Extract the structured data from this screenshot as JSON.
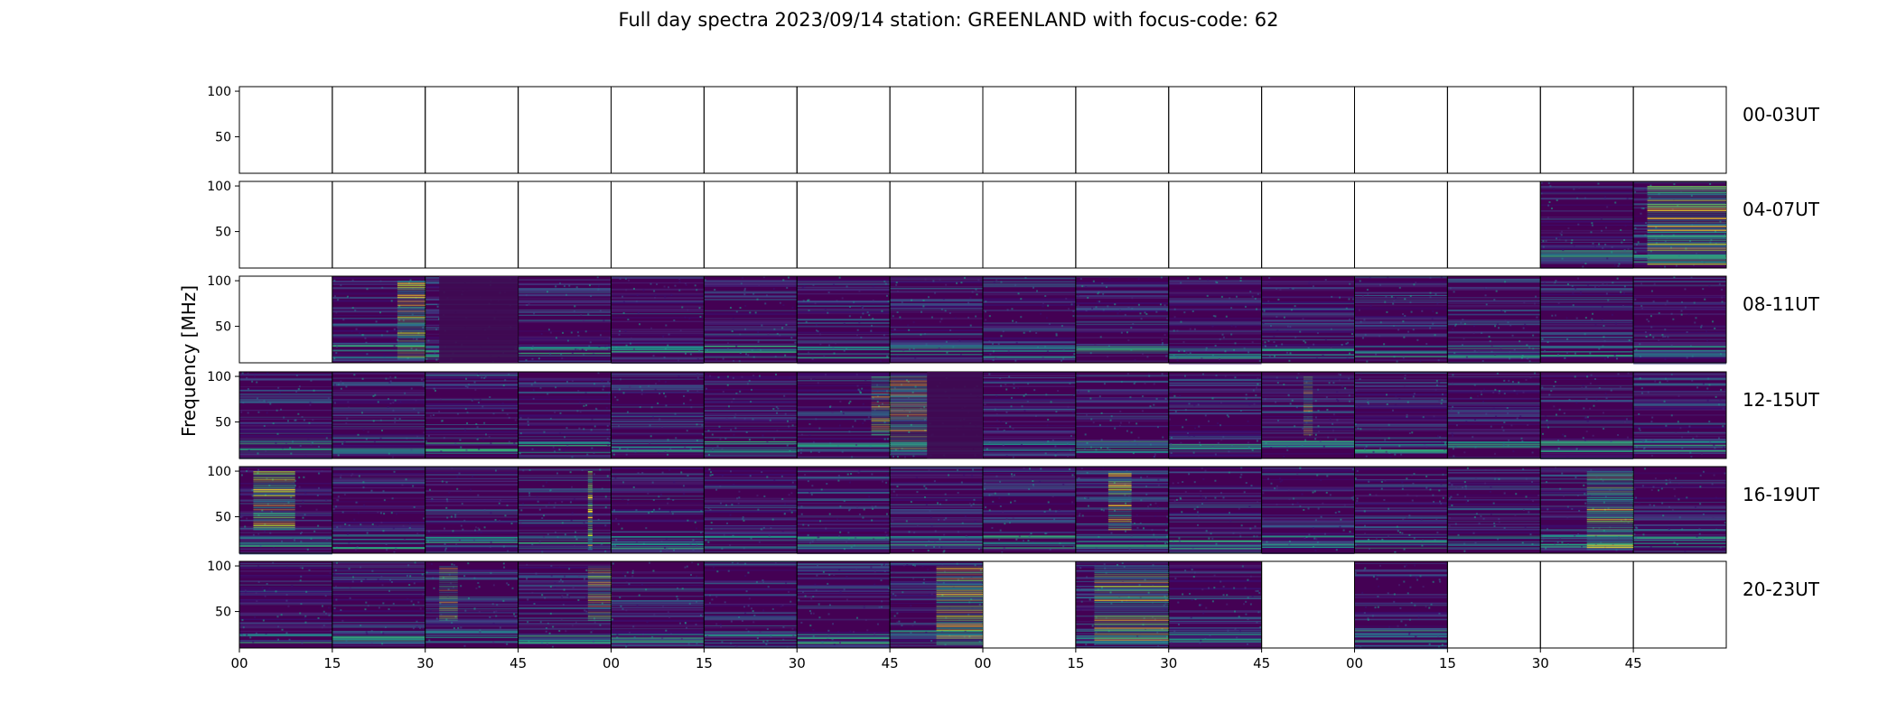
{
  "figure": {
    "title": "Full day spectra 2023/09/14 station: GREENLAND with focus-code: 62"
  },
  "chart_data": {
    "type": "heatmap",
    "title": "Full day spectra 2023/09/14 station: GREENLAND with focus-code: 62",
    "xlabel": "",
    "ylabel": "Frequency [MHz]",
    "ylim": [
      10,
      105
    ],
    "y_ticks": [
      50,
      100
    ],
    "x_tick_labels": [
      "00",
      "15",
      "30",
      "45",
      "00",
      "15",
      "30",
      "45",
      "00",
      "15",
      "30",
      "45",
      "00",
      "15",
      "30",
      "45"
    ],
    "grid": false,
    "colormap": "viridis",
    "rows": [
      {
        "label": "00-03UT",
        "panels": [
          "empty",
          "empty",
          "empty",
          "empty",
          "empty",
          "empty",
          "empty",
          "empty",
          "empty",
          "empty",
          "empty",
          "empty",
          "empty",
          "empty",
          "empty",
          "empty"
        ]
      },
      {
        "label": "04-07UT",
        "panels": [
          "empty",
          "empty",
          "empty",
          "empty",
          "empty",
          "empty",
          "empty",
          "empty",
          "empty",
          "empty",
          "empty",
          "empty",
          "empty",
          "empty",
          "data",
          "data"
        ]
      },
      {
        "label": "08-11UT",
        "panels": [
          "empty",
          "data",
          "data",
          "data",
          "data",
          "data",
          "data",
          "data",
          "data",
          "data",
          "data",
          "data",
          "data",
          "data",
          "data",
          "data"
        ]
      },
      {
        "label": "12-15UT",
        "panels": [
          "data",
          "data",
          "data",
          "data",
          "data",
          "data",
          "data",
          "data",
          "data",
          "data",
          "data",
          "data",
          "data",
          "data",
          "data",
          "data"
        ]
      },
      {
        "label": "16-19UT",
        "panels": [
          "data",
          "data",
          "data",
          "data",
          "data",
          "data",
          "data",
          "data",
          "data",
          "data",
          "data",
          "data",
          "data",
          "data",
          "data",
          "data"
        ]
      },
      {
        "label": "20-23UT",
        "panels": [
          "data",
          "data",
          "data",
          "data",
          "data",
          "data",
          "data",
          "data",
          "empty",
          "data",
          "data",
          "empty",
          "data",
          "empty",
          "empty",
          "empty"
        ]
      }
    ]
  },
  "colors": {
    "background": "#440154",
    "noise": [
      "#3b0f70",
      "#482878",
      "#3e4a89",
      "#31688e"
    ],
    "burst": [
      "#26828e",
      "#1f9e89",
      "#35b779",
      "#6ece58",
      "#b5de2b",
      "#fde725"
    ],
    "frame": "#000000"
  }
}
